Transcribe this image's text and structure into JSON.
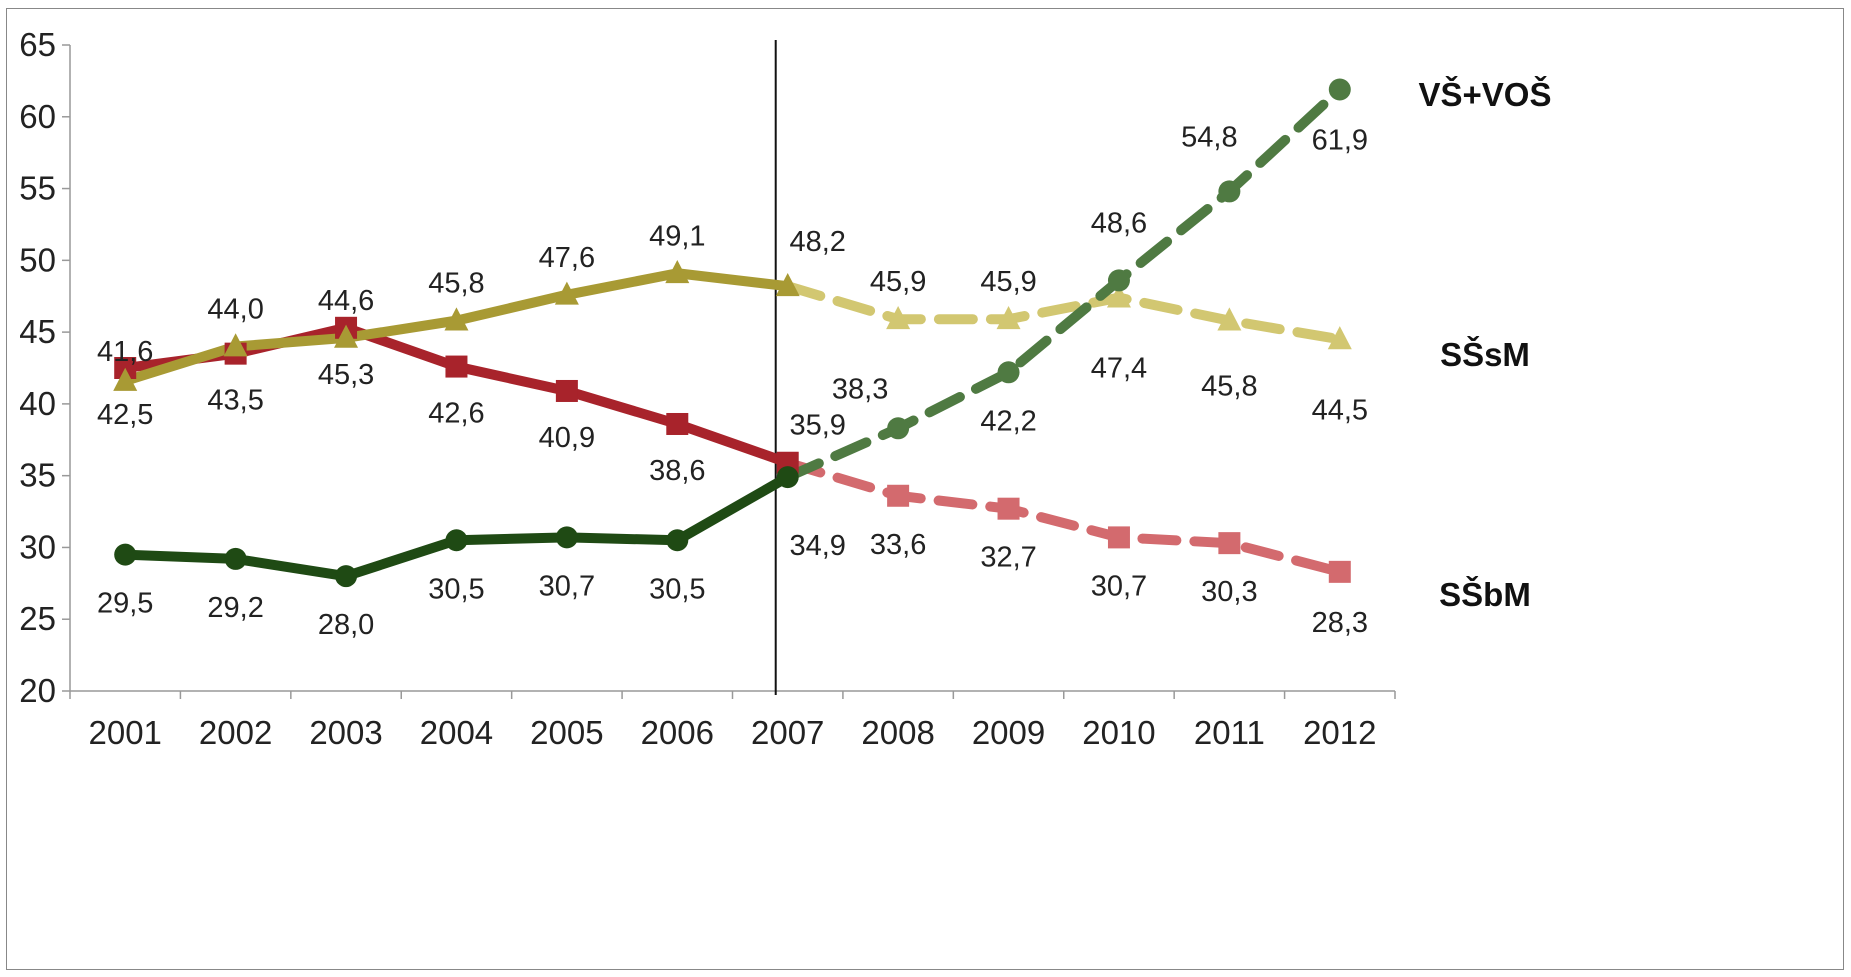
{
  "chart_data": {
    "type": "line",
    "categories": [
      "2001",
      "2002",
      "2003",
      "2004",
      "2005",
      "2006",
      "2007",
      "2008",
      "2009",
      "2010",
      "2011",
      "2012"
    ],
    "ylim": [
      20,
      65
    ],
    "y_ticks": [
      "20",
      "25",
      "30",
      "35",
      "40",
      "45",
      "50",
      "55",
      "60",
      "65"
    ],
    "grid": false,
    "divider_at": "2007",
    "series": [
      {
        "name": "VŠ+VOŠ",
        "color": "#1f4a14",
        "projection_color": "#4f7a42",
        "marker": "circle",
        "solid_until": "2007",
        "values": [
          29.5,
          29.2,
          28.0,
          30.5,
          30.7,
          30.5,
          34.9,
          38.3,
          42.2,
          48.6,
          54.8,
          61.9
        ],
        "labels": [
          "29,5",
          "29,2",
          "28,0",
          "30,5",
          "30,7",
          "30,5",
          "34,9",
          "38,3",
          "42,2",
          "48,6",
          "54,8",
          "61,9"
        ]
      },
      {
        "name": "SŠsM",
        "color": "#a89a34",
        "projection_color": "#d2c771",
        "marker": "triangle",
        "solid_until": "2007",
        "values": [
          41.6,
          44.0,
          44.6,
          45.8,
          47.6,
          49.1,
          48.2,
          45.9,
          45.9,
          47.4,
          45.8,
          44.5
        ],
        "labels": [
          "41,6",
          "44,0",
          "44,6",
          "45,8",
          "47,6",
          "49,1",
          "48,2",
          "45,9",
          "45,9",
          "47,4",
          "45,8",
          "44,5"
        ]
      },
      {
        "name": "SŠbM",
        "color": "#a8232b",
        "projection_color": "#d36a6e",
        "marker": "square",
        "solid_until": "2007",
        "values": [
          42.5,
          43.5,
          45.3,
          42.6,
          40.9,
          38.6,
          35.9,
          33.6,
          32.7,
          30.7,
          30.3,
          28.3
        ],
        "labels": [
          "42,5",
          "43,5",
          "45,3",
          "42,6",
          "40,9",
          "38,6",
          "35,9",
          "33,6",
          "32,7",
          "30,7",
          "30,3",
          "28,3"
        ]
      }
    ]
  }
}
